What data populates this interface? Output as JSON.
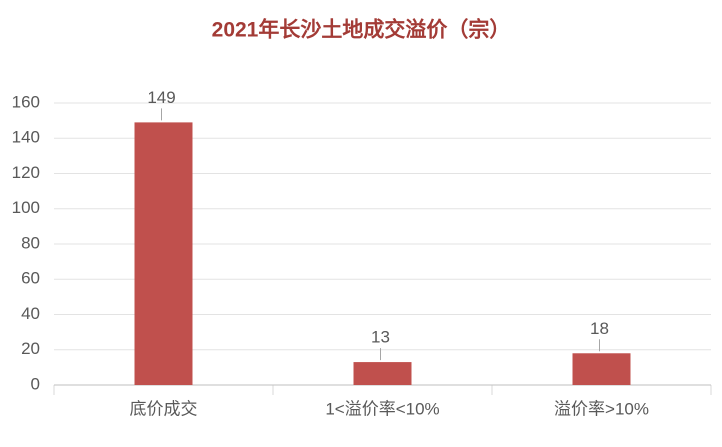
{
  "chart_data": {
    "type": "bar",
    "title": "2021年长沙土地成交溢价（宗）",
    "categories": [
      "底价成交",
      "1<溢价率<10%",
      "溢价率>10%"
    ],
    "values": [
      149,
      13,
      18
    ],
    "color": "#c0504d",
    "ylim": [
      0,
      160
    ],
    "yticks": [
      0,
      20,
      40,
      60,
      80,
      100,
      120,
      140,
      160
    ],
    "grid": true
  }
}
